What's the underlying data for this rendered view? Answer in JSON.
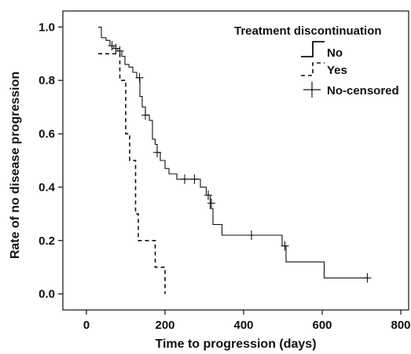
{
  "chart_data": {
    "type": "line",
    "title": "",
    "xlabel": "Time to progression (days)",
    "ylabel": "Rate of no disease progression",
    "xlim": [
      -60,
      820
    ],
    "ylim": [
      -0.06,
      1.06
    ],
    "xticks": [
      0,
      200,
      400,
      600,
      800
    ],
    "yticks": [
      0.0,
      0.2,
      0.4,
      0.6,
      0.8,
      1.0
    ],
    "xtick_labels": [
      "0",
      "200",
      "400",
      "600",
      "800"
    ],
    "ytick_labels": [
      "0.0",
      "0.2",
      "0.4",
      "0.6",
      "0.8",
      "1.0"
    ],
    "grid": false,
    "legend": {
      "title": "Treatment discontinuation",
      "position": "top-right",
      "entries": [
        "No",
        "Yes",
        "No-censored"
      ]
    },
    "series": [
      {
        "name": "No",
        "style": "solid",
        "x": [
          30,
          38,
          50,
          60,
          70,
          80,
          90,
          98,
          108,
          118,
          128,
          136,
          142,
          150,
          160,
          168,
          175,
          180,
          188,
          200,
          210,
          230,
          260,
          290,
          305,
          315,
          322,
          345,
          420,
          498,
          508,
          605,
          715
        ],
        "y": [
          1.0,
          0.96,
          0.95,
          0.93,
          0.92,
          0.91,
          0.89,
          0.86,
          0.85,
          0.83,
          0.81,
          0.74,
          0.7,
          0.67,
          0.65,
          0.58,
          0.56,
          0.53,
          0.5,
          0.47,
          0.45,
          0.43,
          0.43,
          0.4,
          0.37,
          0.32,
          0.26,
          0.22,
          0.22,
          0.18,
          0.12,
          0.06,
          0.06
        ]
      },
      {
        "name": "Yes",
        "style": "dashed",
        "x": [
          30,
          60,
          85,
          100,
          110,
          125,
          132,
          145,
          175,
          200,
          200
        ],
        "y": [
          0.9,
          0.9,
          0.8,
          0.6,
          0.5,
          0.3,
          0.2,
          0.2,
          0.1,
          0.1,
          0.0
        ]
      },
      {
        "name": "No-censored",
        "style": "marker",
        "x": [
          65,
          75,
          85,
          135,
          150,
          180,
          250,
          275,
          310,
          318,
          420,
          505,
          715
        ],
        "y": [
          0.93,
          0.92,
          0.91,
          0.81,
          0.67,
          0.53,
          0.43,
          0.43,
          0.37,
          0.34,
          0.22,
          0.18,
          0.06
        ]
      }
    ]
  }
}
